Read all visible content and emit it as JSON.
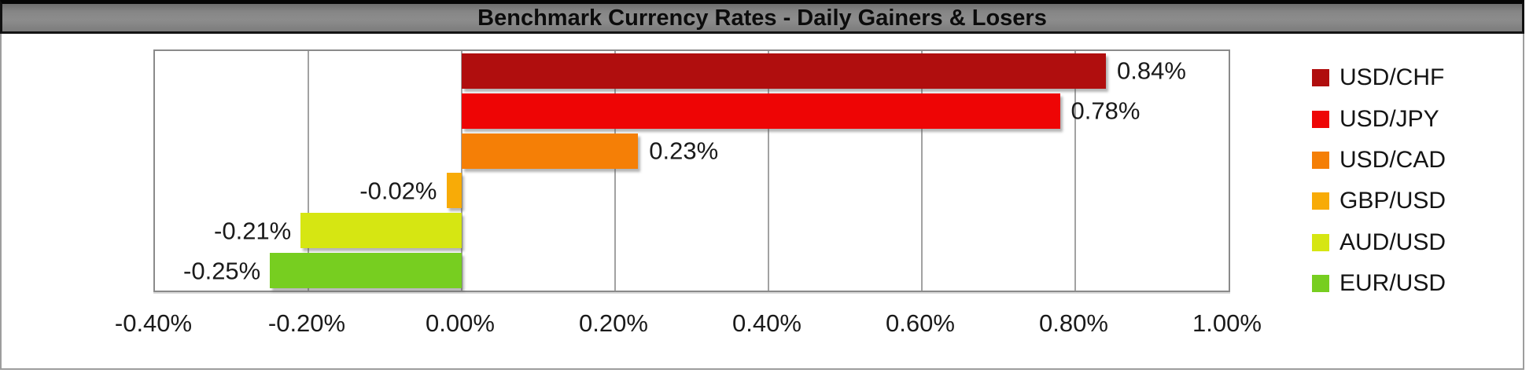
{
  "title": "Benchmark Currency Rates - Daily Gainers & Losers",
  "chart_data": {
    "type": "bar",
    "orientation": "horizontal",
    "title": "Benchmark Currency Rates - Daily Gainers & Losers",
    "categories": [
      "USD/CHF",
      "USD/JPY",
      "USD/CAD",
      "GBP/USD",
      "AUD/USD",
      "EUR/USD"
    ],
    "values": [
      0.84,
      0.78,
      0.23,
      -0.02,
      -0.21,
      -0.25
    ],
    "value_labels": [
      "0.84%",
      "0.78%",
      "0.23%",
      "-0.02%",
      "-0.21%",
      "-0.25%"
    ],
    "bar_colors": [
      "#B00E0E",
      "#EE0505",
      "#F57F06",
      "#F8AB07",
      "#D6E612",
      "#77CE20"
    ],
    "x_ticks": [
      "-0.40%",
      "-0.20%",
      "0.00%",
      "0.20%",
      "0.40%",
      "0.60%",
      "0.80%",
      "1.00%"
    ],
    "xlim": [
      -0.4,
      1.0
    ],
    "tick_step": 0.2,
    "grid": "vertical",
    "legend_position": "right"
  },
  "legend": {
    "items": [
      {
        "label": "USD/CHF",
        "color": "#B00E0E"
      },
      {
        "label": "USD/JPY",
        "color": "#EE0505"
      },
      {
        "label": "USD/CAD",
        "color": "#F57F06"
      },
      {
        "label": "GBP/USD",
        "color": "#F8AB07"
      },
      {
        "label": "AUD/USD",
        "color": "#D6E612"
      },
      {
        "label": "EUR/USD",
        "color": "#77CE20"
      }
    ]
  }
}
